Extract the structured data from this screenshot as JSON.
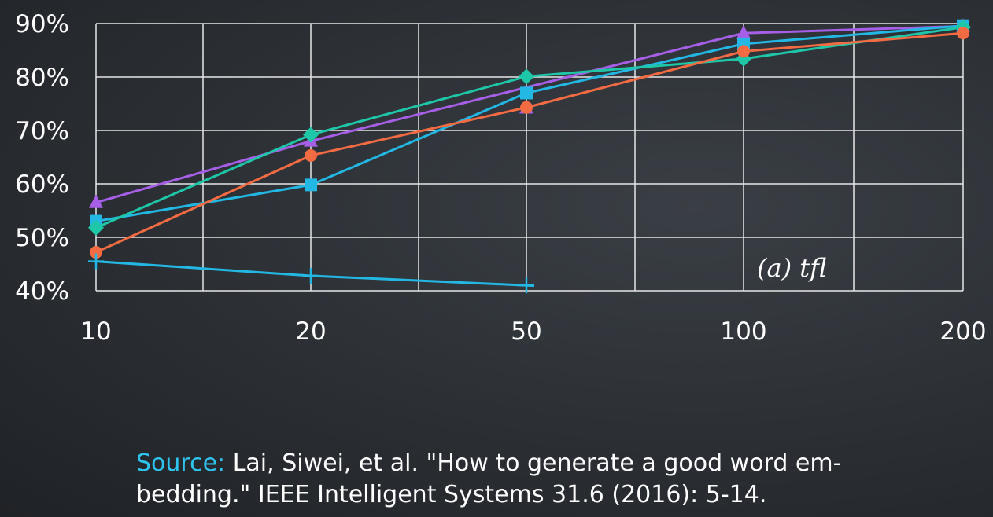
{
  "chart_data": {
    "type": "line",
    "x_categories": [
      "10",
      "20",
      "50",
      "100",
      "200"
    ],
    "y_ticks": [
      "40%",
      "50%",
      "60%",
      "70%",
      "80%",
      "90%"
    ],
    "ylim": [
      40,
      90
    ],
    "grid": true,
    "annotation": "(a)  tfl",
    "series": [
      {
        "marker": "triangle",
        "color": "#a65fe6",
        "values": [
          56.5,
          68,
          null,
          88.2,
          89.5
        ],
        "marker_values": [
          56.5,
          68,
          74.2,
          88.2,
          89.5
        ]
      },
      {
        "marker": "square",
        "color": "#23b7e3",
        "values": [
          53,
          59.8,
          77,
          86.2,
          89.6
        ]
      },
      {
        "marker": "diamond",
        "color": "#1fc7a9",
        "values": [
          51.8,
          69.2,
          80.1,
          83.4,
          89.3
        ]
      },
      {
        "marker": "circle",
        "color": "#f26b43",
        "values": [
          47.2,
          65.3,
          74.3,
          84.8,
          88.2
        ]
      },
      {
        "marker": "plus",
        "color": "#23b7e3",
        "values": [
          45.5,
          42.8,
          41
        ]
      }
    ]
  },
  "source": {
    "label": "Source:",
    "text": " Lai, Siwei, et al. \"How to generate a good word em-bedding.\" IEEE Intelligent Systems 31.6 (2016): 5-14."
  }
}
